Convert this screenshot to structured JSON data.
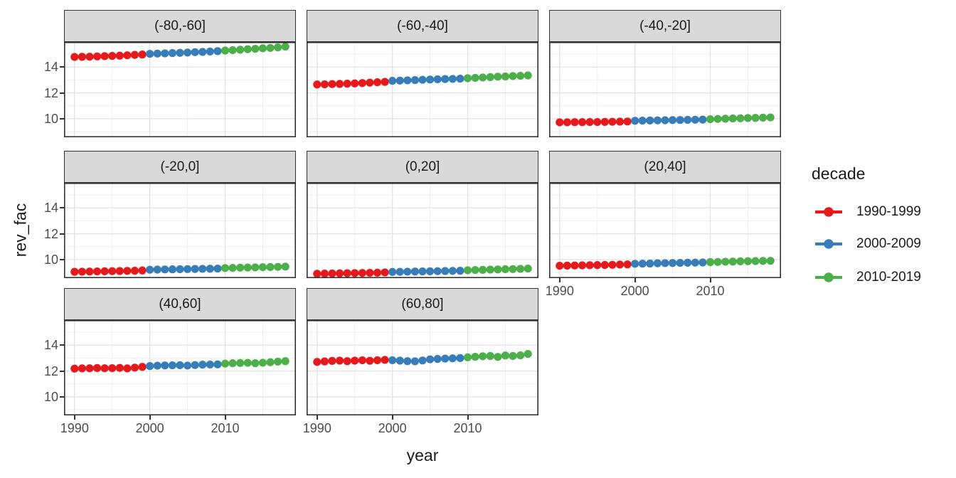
{
  "figure": {
    "background": "#FFFFFF"
  },
  "axes": {
    "x_title": "year",
    "y_title": "rev_fac"
  },
  "legend": {
    "title": "decade",
    "entries": [
      {
        "label": "1990-1999",
        "color": "#E41A1C"
      },
      {
        "label": "2000-2009",
        "color": "#377EB8"
      },
      {
        "label": "2010-2019",
        "color": "#4DAF4A"
      }
    ]
  },
  "chart_data": {
    "type": "scatter",
    "title": "",
    "xlabel": "year",
    "ylabel": "rev_fac",
    "legend_title": "decade",
    "legend_position": "right",
    "grid": true,
    "x": [
      1990,
      1991,
      1992,
      1993,
      1994,
      1995,
      1996,
      1997,
      1998,
      1999,
      2000,
      2001,
      2002,
      2003,
      2004,
      2005,
      2006,
      2007,
      2008,
      2009,
      2010,
      2011,
      2012,
      2013,
      2014,
      2015,
      2016,
      2017,
      2018
    ],
    "x_ticks": [
      1990,
      2000,
      2010
    ],
    "x_minor_ticks": [
      1995,
      2005,
      2015
    ],
    "y_ticks": [
      10,
      12,
      14
    ],
    "y_minor_ticks": [
      9,
      11,
      13,
      15
    ],
    "x_range": [
      1988.6,
      2019.4
    ],
    "y_range": [
      8.56,
      15.94
    ],
    "series_colored_by": "decade",
    "decades": [
      {
        "name": "1990-1999",
        "start": 1990,
        "end": 1999,
        "color": "#E41A1C"
      },
      {
        "name": "2000-2009",
        "start": 2000,
        "end": 2009,
        "color": "#377EB8"
      },
      {
        "name": "2010-2019",
        "start": 2010,
        "end": 2019,
        "color": "#4DAF4A"
      }
    ],
    "facets": [
      {
        "label": "(-80,-60]",
        "values": [
          14.78,
          14.79,
          14.8,
          14.82,
          14.84,
          14.86,
          14.88,
          14.91,
          14.94,
          14.97,
          15.02,
          15.04,
          15.06,
          15.08,
          15.1,
          15.12,
          15.15,
          15.17,
          15.2,
          15.23,
          15.28,
          15.31,
          15.34,
          15.38,
          15.41,
          15.45,
          15.48,
          15.52,
          15.58
        ]
      },
      {
        "label": "(-60,-40]",
        "values": [
          12.65,
          12.66,
          12.68,
          12.69,
          12.71,
          12.73,
          12.76,
          12.79,
          12.82,
          12.85,
          12.93,
          12.95,
          12.97,
          12.99,
          13.01,
          13.03,
          13.05,
          13.07,
          13.08,
          13.1,
          13.13,
          13.16,
          13.19,
          13.22,
          13.25,
          13.27,
          13.3,
          13.32,
          13.35
        ]
      },
      {
        "label": "(-40,-20]",
        "values": [
          9.72,
          9.72,
          9.73,
          9.73,
          9.74,
          9.74,
          9.75,
          9.76,
          9.77,
          9.78,
          9.84,
          9.85,
          9.86,
          9.87,
          9.88,
          9.89,
          9.9,
          9.91,
          9.92,
          9.93,
          9.96,
          9.98,
          10.0,
          10.02,
          10.03,
          10.05,
          10.06,
          10.08,
          10.1
        ]
      },
      {
        "label": "(-20,0]",
        "values": [
          9.05,
          9.06,
          9.07,
          9.08,
          9.09,
          9.1,
          9.11,
          9.12,
          9.13,
          9.15,
          9.21,
          9.22,
          9.23,
          9.24,
          9.25,
          9.26,
          9.27,
          9.28,
          9.29,
          9.3,
          9.34,
          9.35,
          9.37,
          9.38,
          9.39,
          9.41,
          9.42,
          9.43,
          9.45
        ]
      },
      {
        "label": "(0,20]",
        "values": [
          8.9,
          8.91,
          8.92,
          8.93,
          8.94,
          8.95,
          8.96,
          8.97,
          8.98,
          9.0,
          9.04,
          9.05,
          9.06,
          9.07,
          9.08,
          9.09,
          9.1,
          9.11,
          9.12,
          9.13,
          9.17,
          9.19,
          9.2,
          9.22,
          9.23,
          9.25,
          9.26,
          9.28,
          9.3
        ]
      },
      {
        "label": "(20,40]",
        "values": [
          9.52,
          9.53,
          9.54,
          9.55,
          9.56,
          9.57,
          9.58,
          9.59,
          9.61,
          9.62,
          9.67,
          9.68,
          9.69,
          9.71,
          9.72,
          9.73,
          9.74,
          9.75,
          9.76,
          9.77,
          9.8,
          9.81,
          9.83,
          9.84,
          9.86,
          9.87,
          9.88,
          9.89,
          9.9
        ]
      },
      {
        "label": "(40,60]",
        "values": [
          12.18,
          12.2,
          12.21,
          12.23,
          12.21,
          12.22,
          12.24,
          12.2,
          12.26,
          12.32,
          12.38,
          12.41,
          12.43,
          12.44,
          12.45,
          12.42,
          12.46,
          12.49,
          12.5,
          12.51,
          12.57,
          12.6,
          12.62,
          12.63,
          12.6,
          12.64,
          12.68,
          12.72,
          12.76
        ]
      },
      {
        "label": "(60,80]",
        "values": [
          12.7,
          12.74,
          12.78,
          12.8,
          12.76,
          12.8,
          12.83,
          12.79,
          12.83,
          12.86,
          12.83,
          12.8,
          12.76,
          12.75,
          12.81,
          12.9,
          12.93,
          12.96,
          12.98,
          13.0,
          13.06,
          13.1,
          13.14,
          13.16,
          13.09,
          13.2,
          13.16,
          13.21,
          13.32
        ]
      }
    ],
    "style": {
      "strip_bg": "#D9D9D9",
      "panel_border": "#333333",
      "grid_major": "#E2E2E2",
      "grid_minor": "#EFEFEF",
      "tick_label_color": "#4D4D4D",
      "point_radius": 5.6
    }
  }
}
